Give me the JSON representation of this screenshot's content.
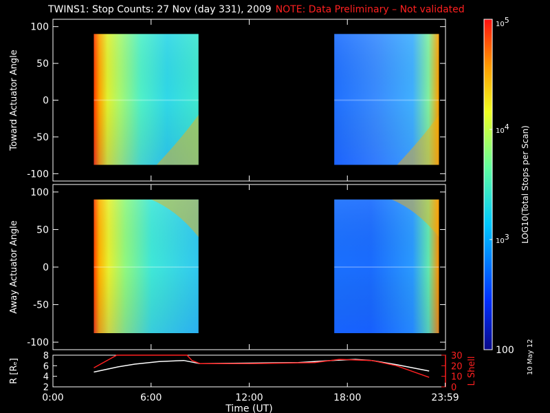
{
  "title": "TWINS1: Stop Counts: 27 Nov (day 331), 2009",
  "note": "NOTE: Data Preliminary – Not validated",
  "date_stamp": "10 May 12",
  "colors": {
    "background": "#000000",
    "axes": "#ffffff",
    "note": "#ff2020",
    "lshell": "#ff2020",
    "radius": "#ffffff"
  },
  "chart_data": [
    {
      "type": "heatmap",
      "ylabel": "Toward Actuator Angle",
      "ylim": [
        -110,
        110
      ],
      "yticks": [
        100,
        50,
        0,
        -50,
        -100
      ],
      "xlim": [
        0,
        24
      ],
      "blocks": [
        {
          "x_start": 2.5,
          "x_end": 8.9,
          "y_start": -88,
          "y_end": 90
        },
        {
          "x_start": 17.2,
          "x_end": 23.6,
          "y_start": -88,
          "y_end": 90
        }
      ]
    },
    {
      "type": "heatmap",
      "ylabel": "Away Actuator Angle",
      "ylim": [
        -110,
        110
      ],
      "yticks": [
        100,
        50,
        0,
        -50,
        -100
      ],
      "xlim": [
        0,
        24
      ],
      "blocks": [
        {
          "x_start": 2.5,
          "x_end": 8.9,
          "y_start": -88,
          "y_end": 90
        },
        {
          "x_start": 17.2,
          "x_end": 23.6,
          "y_start": -88,
          "y_end": 90
        }
      ]
    },
    {
      "type": "line",
      "xlabel": "Time (UT)",
      "xlim": [
        0,
        24
      ],
      "xticks": [
        "0:00",
        "6:00",
        "12:00",
        "18:00",
        "23:59"
      ],
      "ylabel_left": "R [Rₑ]",
      "ylim_left": [
        2,
        8
      ],
      "yticks_left": [
        8,
        6,
        4,
        2
      ],
      "ylabel_right": "L Shell",
      "ylim_right": [
        0,
        30
      ],
      "yticks_right": [
        30,
        20,
        10,
        0
      ],
      "series": [
        {
          "axis": "left",
          "x": [
            2.5,
            4,
            5,
            6.5,
            8,
            9,
            12,
            15,
            17,
            18.5,
            19.5,
            21,
            23
          ],
          "y": [
            4.8,
            5.8,
            6.3,
            6.8,
            7.0,
            6.4,
            6.5,
            6.6,
            7.0,
            7.2,
            7.0,
            6.2,
            5.0
          ]
        },
        {
          "axis": "right",
          "x": [
            2.5,
            3.9,
            8.2,
            8.5,
            9,
            12,
            16,
            17.5,
            19.5,
            21,
            23
          ],
          "y": [
            18,
            30,
            30,
            25,
            22,
            22,
            23,
            26,
            25,
            20,
            9
          ]
        }
      ]
    },
    {
      "type": "colorbar",
      "title": "LOG10(Total Stops per Scan)",
      "scale": "log",
      "range": [
        100,
        100000
      ],
      "ticks": [
        "10^5",
        "10^4",
        "10^3",
        "100"
      ]
    }
  ]
}
